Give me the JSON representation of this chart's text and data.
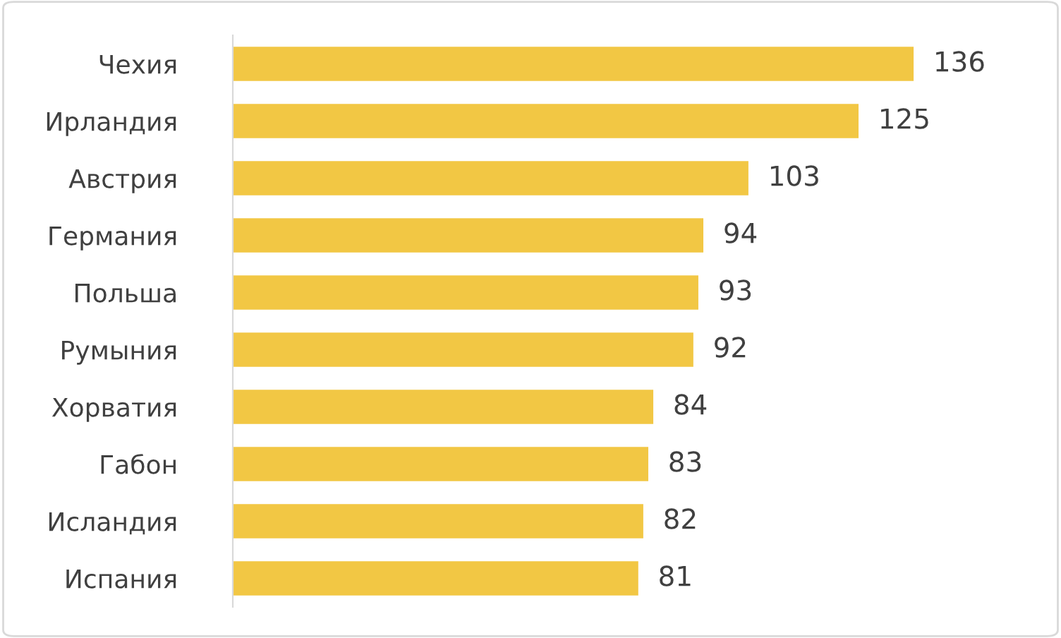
{
  "chart_data": {
    "type": "bar",
    "orientation": "horizontal",
    "categories": [
      "Чехия",
      "Ирландия",
      "Австрия",
      "Германия",
      "Польша",
      "Румыния",
      "Хорватия",
      "Габон",
      "Исландия",
      "Испания"
    ],
    "values": [
      136,
      125,
      103,
      94,
      93,
      92,
      84,
      83,
      82,
      81
    ],
    "color": "#f2c744",
    "data_labels": true,
    "grid": false,
    "legend": false,
    "tick_labels": "y"
  }
}
